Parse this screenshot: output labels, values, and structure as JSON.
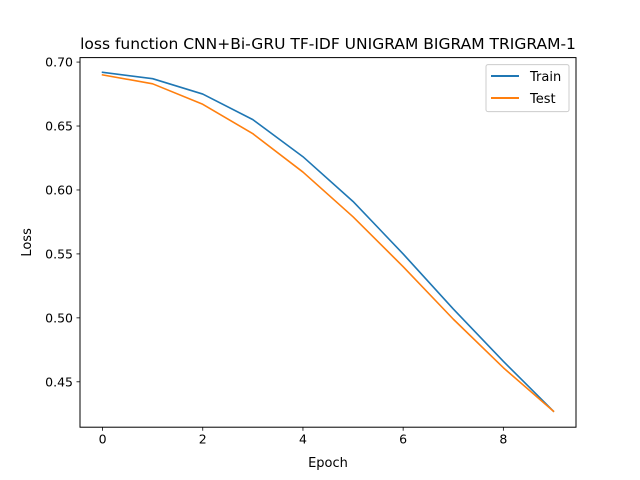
{
  "chart_data": {
    "type": "line",
    "title": "loss function CNN+Bi-GRU TF-IDF UNIGRAM BIGRAM TRIGRAM-1",
    "xlabel": "Epoch",
    "ylabel": "Loss",
    "xlim": [
      -0.45,
      9.45
    ],
    "ylim": [
      0.4145,
      0.7035
    ],
    "xticks": [
      0,
      2,
      4,
      6,
      8
    ],
    "yticks": [
      0.45,
      0.5,
      0.55,
      0.6,
      0.65,
      0.7
    ],
    "ytick_labels": [
      "0.45",
      "0.50",
      "0.55",
      "0.60",
      "0.65",
      "0.70"
    ],
    "grid": false,
    "legend_position": "upper right",
    "x": [
      0,
      1,
      2,
      3,
      4,
      5,
      6,
      7,
      8,
      9
    ],
    "series": [
      {
        "name": "Train",
        "color": "#1f77b4",
        "values": [
          0.692,
          0.687,
          0.675,
          0.655,
          0.626,
          0.591,
          0.55,
          0.507,
          0.466,
          0.427
        ]
      },
      {
        "name": "Test",
        "color": "#ff7f0e",
        "values": [
          0.69,
          0.683,
          0.667,
          0.644,
          0.614,
          0.579,
          0.54,
          0.499,
          0.461,
          0.427
        ]
      }
    ]
  }
}
